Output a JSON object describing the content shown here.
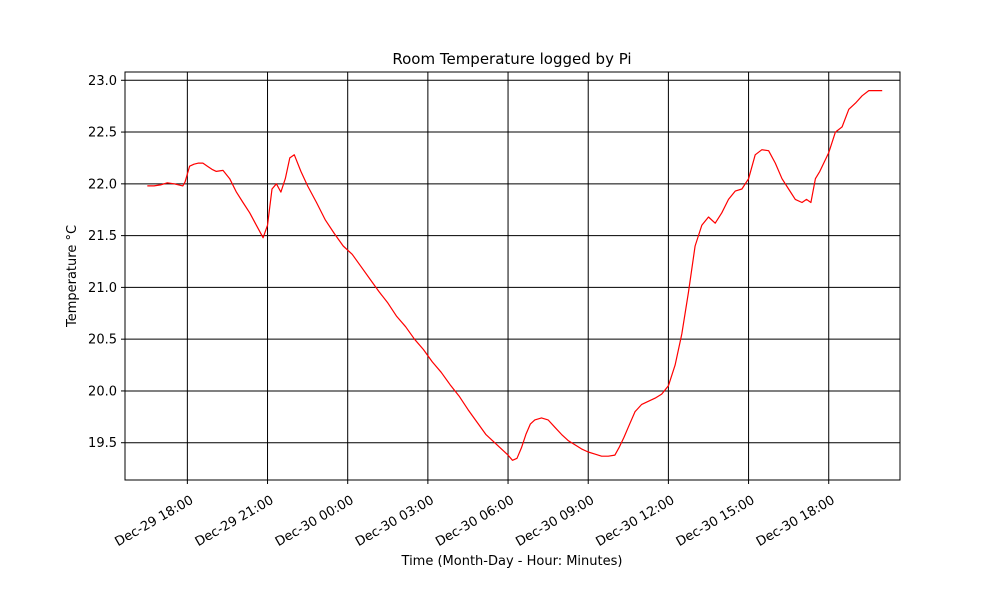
{
  "chart_data": {
    "type": "line",
    "title": "Room Temperature logged by Pi",
    "xlabel": "Time (Month-Day - Hour: Minutes)",
    "ylabel": "Temperature °C",
    "grid": true,
    "xlim": [
      "2019-12-29 15:40",
      "2019-12-30 20:40"
    ],
    "ylim": [
      19.14,
      23.08
    ],
    "x_ticks": [
      {
        "value": "2019-12-29 18:00",
        "label": "Dec-29 18:00"
      },
      {
        "value": "2019-12-29 21:00",
        "label": "Dec-29 21:00"
      },
      {
        "value": "2019-12-30 00:00",
        "label": "Dec-30 00:00"
      },
      {
        "value": "2019-12-30 03:00",
        "label": "Dec-30 03:00"
      },
      {
        "value": "2019-12-30 06:00",
        "label": "Dec-30 06:00"
      },
      {
        "value": "2019-12-30 09:00",
        "label": "Dec-30 09:00"
      },
      {
        "value": "2019-12-30 12:00",
        "label": "Dec-30 12:00"
      },
      {
        "value": "2019-12-30 15:00",
        "label": "Dec-30 15:00"
      },
      {
        "value": "2019-12-30 18:00",
        "label": "Dec-30 18:00"
      }
    ],
    "y_ticks": [
      {
        "value": 19.5,
        "label": "19.5"
      },
      {
        "value": 20.0,
        "label": "20.0"
      },
      {
        "value": 20.5,
        "label": "20.5"
      },
      {
        "value": 21.0,
        "label": "21.0"
      },
      {
        "value": 21.5,
        "label": "21.5"
      },
      {
        "value": 22.0,
        "label": "22.0"
      },
      {
        "value": 22.5,
        "label": "22.5"
      },
      {
        "value": 23.0,
        "label": "23.0"
      }
    ],
    "series": [
      {
        "color": "#ff0000",
        "x": [
          "2019-12-29 16:30",
          "2019-12-29 16:45",
          "2019-12-29 17:00",
          "2019-12-29 17:15",
          "2019-12-29 17:30",
          "2019-12-29 17:50",
          "2019-12-29 17:55",
          "2019-12-29 18:05",
          "2019-12-29 18:15",
          "2019-12-29 18:25",
          "2019-12-29 18:35",
          "2019-12-29 18:45",
          "2019-12-29 18:55",
          "2019-12-29 19:05",
          "2019-12-29 19:20",
          "2019-12-29 19:35",
          "2019-12-29 19:50",
          "2019-12-29 20:05",
          "2019-12-29 20:20",
          "2019-12-29 20:35",
          "2019-12-29 20:50",
          "2019-12-29 21:00",
          "2019-12-29 21:10",
          "2019-12-29 21:20",
          "2019-12-29 21:30",
          "2019-12-29 21:40",
          "2019-12-29 21:50",
          "2019-12-29 22:00",
          "2019-12-29 22:15",
          "2019-12-29 22:30",
          "2019-12-29 22:50",
          "2019-12-29 23:10",
          "2019-12-29 23:30",
          "2019-12-29 23:50",
          "2019-12-30 00:10",
          "2019-12-30 00:30",
          "2019-12-30 00:50",
          "2019-12-30 01:10",
          "2019-12-30 01:30",
          "2019-12-30 01:50",
          "2019-12-30 02:10",
          "2019-12-30 02:30",
          "2019-12-30 02:50",
          "2019-12-30 03:10",
          "2019-12-30 03:30",
          "2019-12-30 03:50",
          "2019-12-30 04:10",
          "2019-12-30 04:30",
          "2019-12-30 04:50",
          "2019-12-30 05:10",
          "2019-12-30 05:30",
          "2019-12-30 05:45",
          "2019-12-30 06:00",
          "2019-12-30 06:10",
          "2019-12-30 06:20",
          "2019-12-30 06:30",
          "2019-12-30 06:40",
          "2019-12-30 06:50",
          "2019-12-30 07:00",
          "2019-12-30 07:15",
          "2019-12-30 07:30",
          "2019-12-30 07:45",
          "2019-12-30 08:00",
          "2019-12-30 08:15",
          "2019-12-30 08:30",
          "2019-12-30 08:45",
          "2019-12-30 09:00",
          "2019-12-30 09:15",
          "2019-12-30 09:30",
          "2019-12-30 09:45",
          "2019-12-30 10:00",
          "2019-12-30 10:10",
          "2019-12-30 10:20",
          "2019-12-30 10:30",
          "2019-12-30 10:45",
          "2019-12-30 11:00",
          "2019-12-30 11:15",
          "2019-12-30 11:30",
          "2019-12-30 11:45",
          "2019-12-30 12:00",
          "2019-12-30 12:15",
          "2019-12-30 12:30",
          "2019-12-30 12:45",
          "2019-12-30 13:00",
          "2019-12-30 13:15",
          "2019-12-30 13:30",
          "2019-12-30 13:45",
          "2019-12-30 14:00",
          "2019-12-30 14:15",
          "2019-12-30 14:30",
          "2019-12-30 14:45",
          "2019-12-30 15:00",
          "2019-12-30 15:15",
          "2019-12-30 15:30",
          "2019-12-30 15:45",
          "2019-12-30 16:00",
          "2019-12-30 16:15",
          "2019-12-30 16:30",
          "2019-12-30 16:45",
          "2019-12-30 17:00",
          "2019-12-30 17:10",
          "2019-12-30 17:20",
          "2019-12-30 17:30",
          "2019-12-30 17:40",
          "2019-12-30 18:00",
          "2019-12-30 18:15",
          "2019-12-30 18:30",
          "2019-12-30 18:45",
          "2019-12-30 19:00",
          "2019-12-30 19:15",
          "2019-12-30 19:30",
          "2019-12-30 19:45",
          "2019-12-30 20:00"
        ],
        "y": [
          21.98,
          21.98,
          21.99,
          22.01,
          22.0,
          21.98,
          22.02,
          22.17,
          22.19,
          22.2,
          22.2,
          22.17,
          22.14,
          22.12,
          22.13,
          22.05,
          21.92,
          21.82,
          21.72,
          21.6,
          21.48,
          21.6,
          21.95,
          22.0,
          21.92,
          22.05,
          22.25,
          22.28,
          22.12,
          21.98,
          21.82,
          21.65,
          21.52,
          21.4,
          21.32,
          21.2,
          21.08,
          20.96,
          20.85,
          20.72,
          20.62,
          20.5,
          20.4,
          20.28,
          20.18,
          20.06,
          19.95,
          19.82,
          19.7,
          19.58,
          19.5,
          19.44,
          19.38,
          19.33,
          19.35,
          19.45,
          19.58,
          19.68,
          19.72,
          19.74,
          19.72,
          19.65,
          19.58,
          19.52,
          19.48,
          19.44,
          19.41,
          19.39,
          19.37,
          19.37,
          19.38,
          19.46,
          19.55,
          19.65,
          19.8,
          19.87,
          19.9,
          19.93,
          19.97,
          20.05,
          20.25,
          20.55,
          20.95,
          21.4,
          21.6,
          21.68,
          21.62,
          21.72,
          21.85,
          21.93,
          21.95,
          22.05,
          22.28,
          22.33,
          22.32,
          22.2,
          22.05,
          21.95,
          21.85,
          21.82,
          21.85,
          21.82,
          22.05,
          22.12,
          22.3,
          22.5,
          22.55,
          22.72,
          22.78,
          22.85,
          22.9,
          22.9,
          22.9
        ]
      }
    ]
  }
}
